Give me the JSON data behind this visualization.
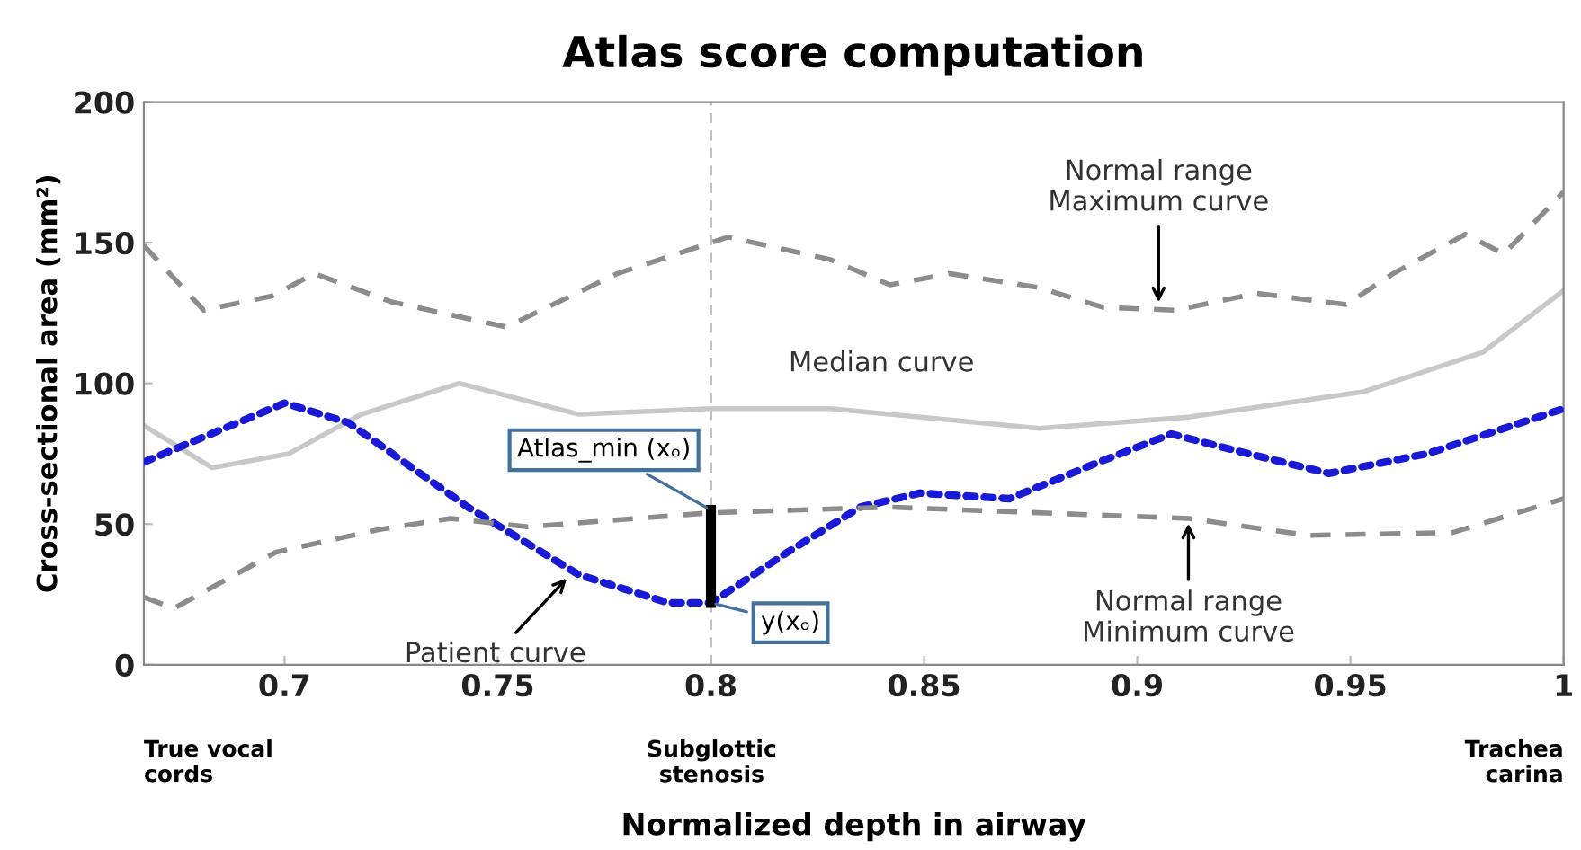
{
  "chart_data": {
    "type": "line",
    "title": "Atlas score computation",
    "xlabel": "Normalized depth in airway",
    "ylabel": "Cross-sectional area (mm²)",
    "xlim": [
      0.667,
      1
    ],
    "xticks": [
      0.7,
      0.75,
      0.8,
      0.85,
      0.9,
      0.95,
      1
    ],
    "ylim": [
      0,
      200
    ],
    "yticks": [
      0,
      50,
      100,
      150,
      200
    ],
    "grid": false,
    "series": [
      {
        "color": "#8c8c8c",
        "line_style": "dashed",
        "x": [
          0.667,
          0.681,
          0.697,
          0.707,
          0.725,
          0.752,
          0.778,
          0.804,
          0.828,
          0.842,
          0.856,
          0.877,
          0.892,
          0.909,
          0.928,
          0.949,
          0.96,
          0.977,
          0.986,
          1.0
        ],
        "values": [
          149,
          126,
          131,
          139,
          129,
          120,
          139,
          152,
          144,
          135,
          139,
          134,
          127,
          126,
          132,
          128,
          139,
          153,
          146,
          168
        ]
      },
      {
        "color": "#c8c8c8",
        "line_style": "solid",
        "x": [
          0.667,
          0.683,
          0.701,
          0.718,
          0.741,
          0.769,
          0.8,
          0.828,
          0.877,
          0.912,
          0.953,
          0.981,
          1.0
        ],
        "values": [
          85,
          70,
          75,
          89,
          100,
          89,
          91,
          91,
          84,
          88,
          97,
          111,
          133
        ]
      },
      {
        "color": "#1a1ad6",
        "line_style": "dotted",
        "x": [
          0.667,
          0.7,
          0.715,
          0.743,
          0.769,
          0.79,
          0.8,
          0.818,
          0.835,
          0.849,
          0.87,
          0.891,
          0.908,
          0.926,
          0.945,
          0.968,
          1.0
        ],
        "values": [
          72,
          93,
          86,
          56,
          32,
          22,
          22,
          40,
          56,
          61,
          59,
          72,
          82,
          75,
          68,
          75,
          91
        ]
      },
      {
        "color": "#8c8c8c",
        "line_style": "dashed",
        "x": [
          0.667,
          0.674,
          0.698,
          0.722,
          0.739,
          0.757,
          0.8,
          0.842,
          0.912,
          0.94,
          0.974,
          1.0
        ],
        "values": [
          24,
          20,
          40,
          48,
          52,
          49,
          54,
          56,
          52,
          46,
          47,
          59
        ]
      },
      {
        "color": "#000000",
        "line_style": "solid",
        "x": [
          0.8,
          0.8
        ],
        "values": [
          22,
          55
        ]
      }
    ],
    "ref_lines": [
      {
        "axis": "x",
        "value": 0.8,
        "color": "#bbbbbb",
        "line_style": "dashed"
      }
    ],
    "annotations": [
      {
        "text": "Atlas_min (xₒ)",
        "x": 0.8,
        "y": 55
      },
      {
        "text": "y(xₒ)",
        "x": 0.8,
        "y": 22
      },
      {
        "text": "Patient curve",
        "x": 0.767,
        "y": 32
      },
      {
        "text": "Median curve",
        "x": 0.84,
        "y": 91
      },
      {
        "text": "Normal range\nMaximum curve",
        "x": 0.905,
        "y": 127
      },
      {
        "text": "Normal range\nMinimum curve",
        "x": 0.912,
        "y": 52
      },
      "True vocal\ncords",
      "Subglottic\nstenosis",
      "Trachea\ncarina"
    ]
  }
}
